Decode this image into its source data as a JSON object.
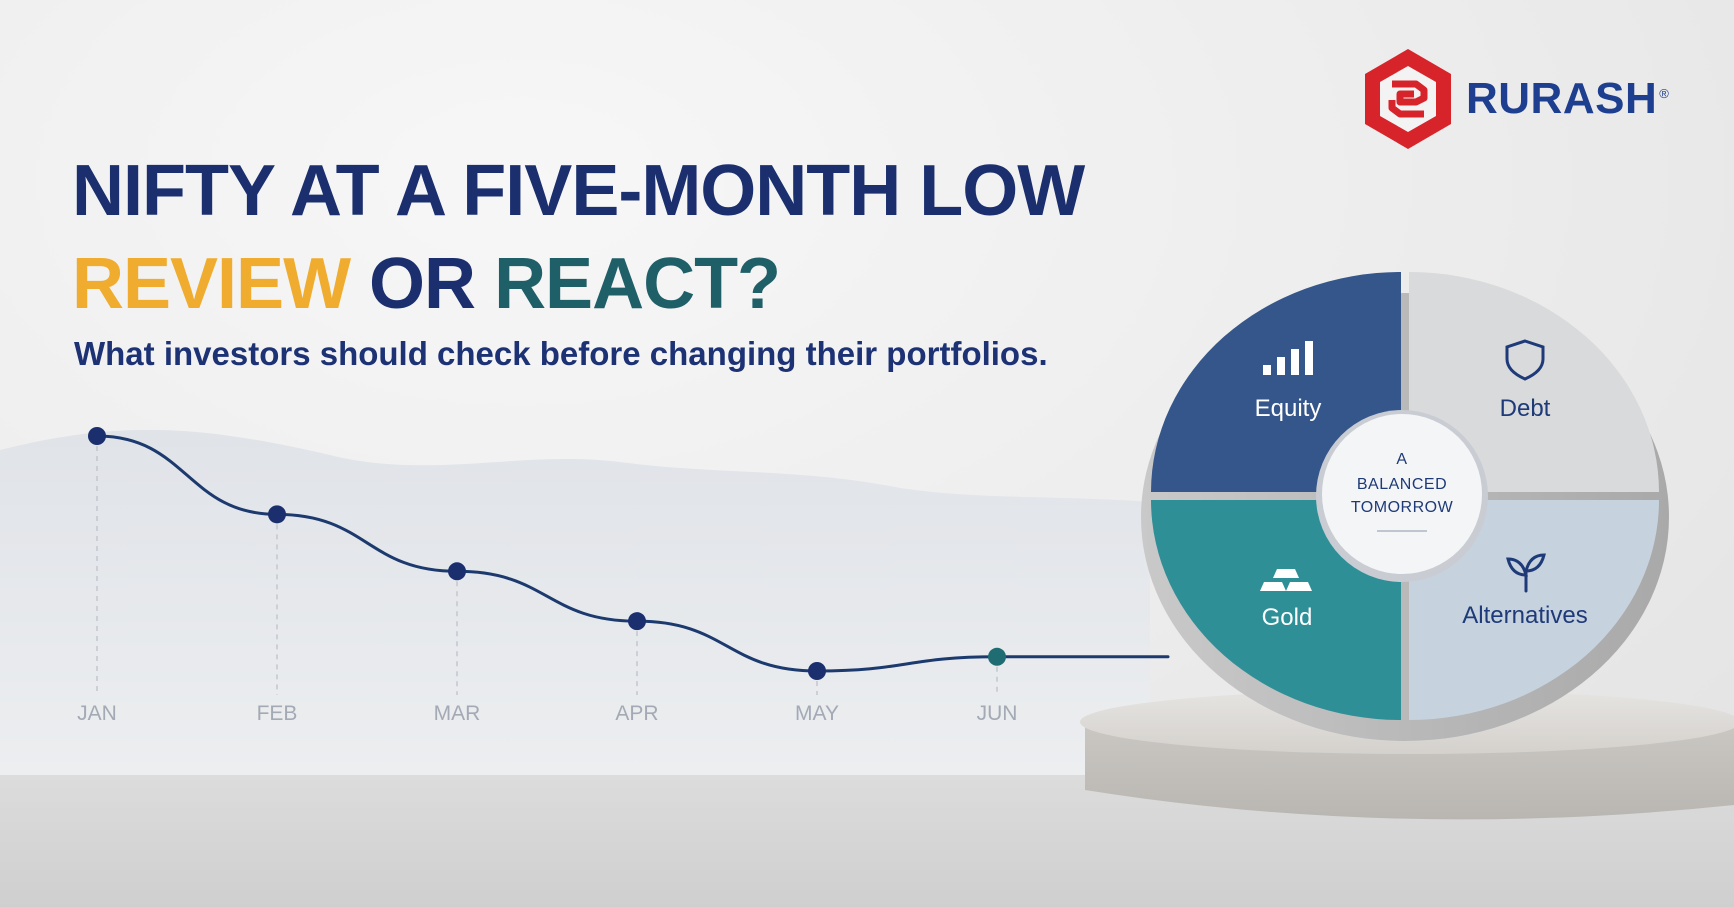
{
  "brand": {
    "name": "RURASH",
    "registered": "®",
    "logo_icon": "rurash-hexagon-logo-icon",
    "color": "#1e3f8f",
    "logo_color": "#d7242b"
  },
  "headline": {
    "line1": "NIFTY AT A FIVE-MONTH LOW",
    "line2_part1": "REVIEW",
    "line2_part2": "OR",
    "line2_part3": "REACT?",
    "subtitle": "What investors should check before changing their portfolios."
  },
  "colors": {
    "navy": "#1b2f6e",
    "gold": "#f0ac2e",
    "teal": "#1f5f67"
  },
  "chart_data": {
    "type": "line",
    "categories": [
      "JAN",
      "FEB",
      "MAR",
      "APR",
      "MAY",
      "JUN"
    ],
    "series": [
      {
        "values": [
          100,
          78,
          62,
          48,
          34,
          38
        ]
      }
    ]
  },
  "portfolio": {
    "center_line1": "A",
    "center_line2": "BALANCED",
    "center_line3": "TOMORROW",
    "segments": [
      {
        "label": "Equity",
        "icon": "bar-chart-icon",
        "color": "#35568a"
      },
      {
        "label": "Debt",
        "icon": "shield-icon",
        "color": "#d9dadb"
      },
      {
        "label": "Gold",
        "icon": "gold-bars-icon",
        "color": "#2f8f97"
      },
      {
        "label": "Alternatives",
        "icon": "sprout-icon",
        "color": "#c6d3de"
      }
    ]
  }
}
